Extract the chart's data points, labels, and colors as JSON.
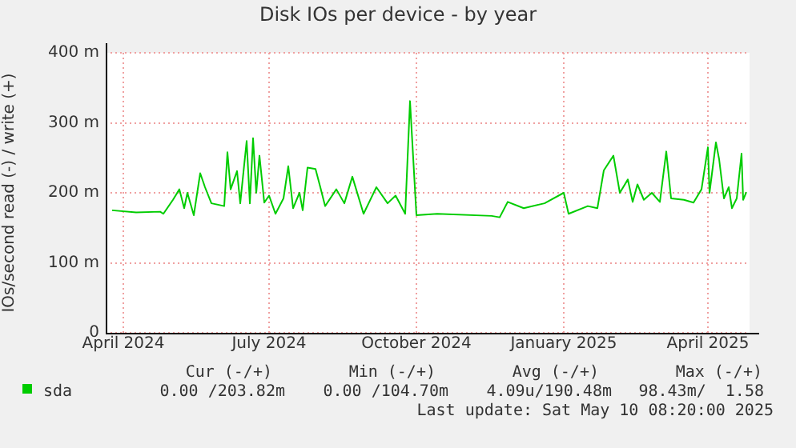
{
  "chart_data": {
    "type": "line",
    "title": "Disk IOs per device - by year",
    "ylabel": "IOs/second read (-) / write (+)",
    "xlim": [
      "2024-03-21",
      "2025-04-27"
    ],
    "xticks": [
      {
        "value": "2024-04-01",
        "label": "April 2024"
      },
      {
        "value": "2024-07-01",
        "label": "July 2024"
      },
      {
        "value": "2024-10-01",
        "label": "October 2024"
      },
      {
        "value": "2025-01-01",
        "label": "January 2025"
      },
      {
        "value": "2025-04-01",
        "label": "April 2025"
      }
    ],
    "ylim": [
      0,
      400
    ],
    "yticks": [
      0,
      {
        "value": 100,
        "label": "100 m"
      },
      {
        "value": 200,
        "label": "200 m"
      },
      {
        "value": 300,
        "label": "300 m"
      },
      {
        "value": 400,
        "label": "400 m"
      }
    ],
    "grid": true,
    "legend": "bottom left",
    "x": [
      "2024-03-25",
      "2024-04-09",
      "2024-04-24",
      "2024-04-26",
      "2024-05-02",
      "2024-05-06",
      "2024-05-09",
      "2024-05-11",
      "2024-05-15",
      "2024-05-19",
      "2024-05-22",
      "2024-05-26",
      "2024-06-03",
      "2024-06-05",
      "2024-06-07",
      "2024-06-11",
      "2024-06-13",
      "2024-06-17",
      "2024-06-19",
      "2024-06-21",
      "2024-06-23",
      "2024-06-25",
      "2024-06-28",
      "2024-07-01",
      "2024-07-05",
      "2024-07-10",
      "2024-07-13",
      "2024-07-16",
      "2024-07-20",
      "2024-07-22",
      "2024-07-25",
      "2024-07-30",
      "2024-08-02",
      "2024-08-05",
      "2024-08-12",
      "2024-08-17",
      "2024-08-22",
      "2024-08-29",
      "2024-09-06",
      "2024-09-13",
      "2024-09-18",
      "2024-09-24",
      "2024-09-27",
      "2024-10-01",
      "2024-10-14",
      "2024-11-17",
      "2024-11-22",
      "2024-11-27",
      "2024-12-07",
      "2024-12-20",
      "2025-01-01",
      "2025-01-04",
      "2025-01-16",
      "2025-01-22",
      "2025-01-26",
      "2025-02-01",
      "2025-02-05",
      "2025-02-10",
      "2025-02-13",
      "2025-02-16",
      "2025-02-20",
      "2025-02-25",
      "2025-03-02",
      "2025-03-06",
      "2025-03-09",
      "2025-03-17",
      "2025-03-23",
      "2025-03-28",
      "2025-04-01",
      "2025-04-02",
      "2025-04-06",
      "2025-04-08",
      "2025-04-11",
      "2025-04-14",
      "2025-04-16",
      "2025-04-19",
      "2025-04-22",
      "2025-04-23",
      "2025-04-25"
    ],
    "series": [
      {
        "name": "sda",
        "color": "#00cc00",
        "values": [
          175,
          172,
          173,
          170,
          190,
          205,
          178,
          200,
          168,
          228,
          208,
          185,
          181,
          258,
          205,
          231,
          185,
          274,
          185,
          278,
          200,
          253,
          186,
          196,
          170,
          192,
          238,
          178,
          200,
          175,
          236,
          234,
          208,
          181,
          205,
          185,
          223,
          170,
          208,
          185,
          196,
          170,
          331,
          168,
          170,
          167,
          165,
          187,
          178,
          185,
          200,
          170,
          181,
          178,
          232,
          253,
          200,
          219,
          187,
          212,
          190,
          200,
          187,
          259,
          192,
          190,
          186,
          205,
          265,
          200,
          272,
          248,
          192,
          208,
          178,
          192,
          256,
          190,
          201
        ]
      }
    ],
    "annotations": [
      "Cur (-/+)",
      "Min (-/+)",
      "Avg (-/+)",
      "Max (-/+)",
      "0.00 /203.82m",
      "0.00 /104.70m",
      "4.09u/190.48m",
      "98.43m/  1.58",
      "Last update: Sat May 10 08:20:00 2025"
    ]
  }
}
